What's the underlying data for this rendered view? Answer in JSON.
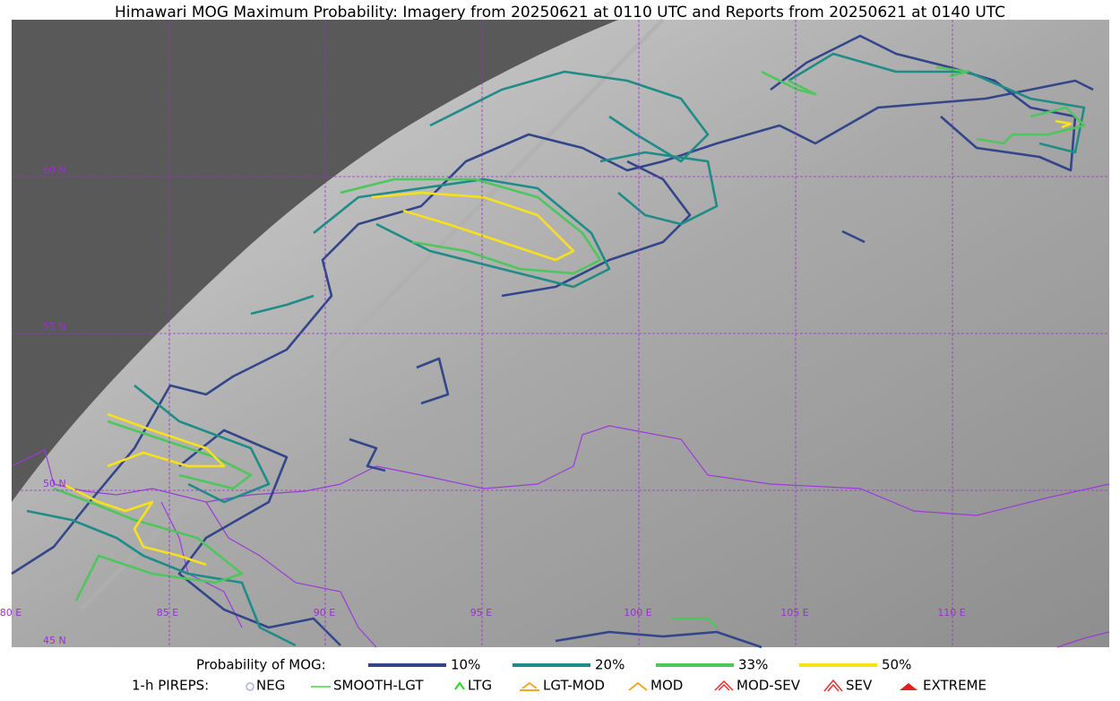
{
  "title": "Himawari MOG Maximum Probability: Imagery from 20250621 at 0110 UTC and Reports from 20250621 at 0140 UTC",
  "map": {
    "lat_labels": [
      "60 N",
      "55 N",
      "50 N",
      "45 N"
    ],
    "lon_labels": [
      "80 E",
      "85 E",
      "90 E",
      "95 E",
      "100 E",
      "105 E",
      "110 E"
    ]
  },
  "legend": {
    "label": "Probability of MOG:",
    "items": [
      {
        "label": "10%",
        "color": "#33468a"
      },
      {
        "label": "20%",
        "color": "#1f8c87"
      },
      {
        "label": "33%",
        "color": "#4fc65d"
      },
      {
        "label": "50%",
        "color": "#f7e11b"
      }
    ]
  },
  "pireps": {
    "label": "1-h PIREPS:",
    "items": [
      "NEG",
      "SMOOTH-LGT",
      "LTG",
      "LGT-MOD",
      "MOD",
      "MOD-SEV",
      "SEV",
      "EXTREME"
    ]
  }
}
